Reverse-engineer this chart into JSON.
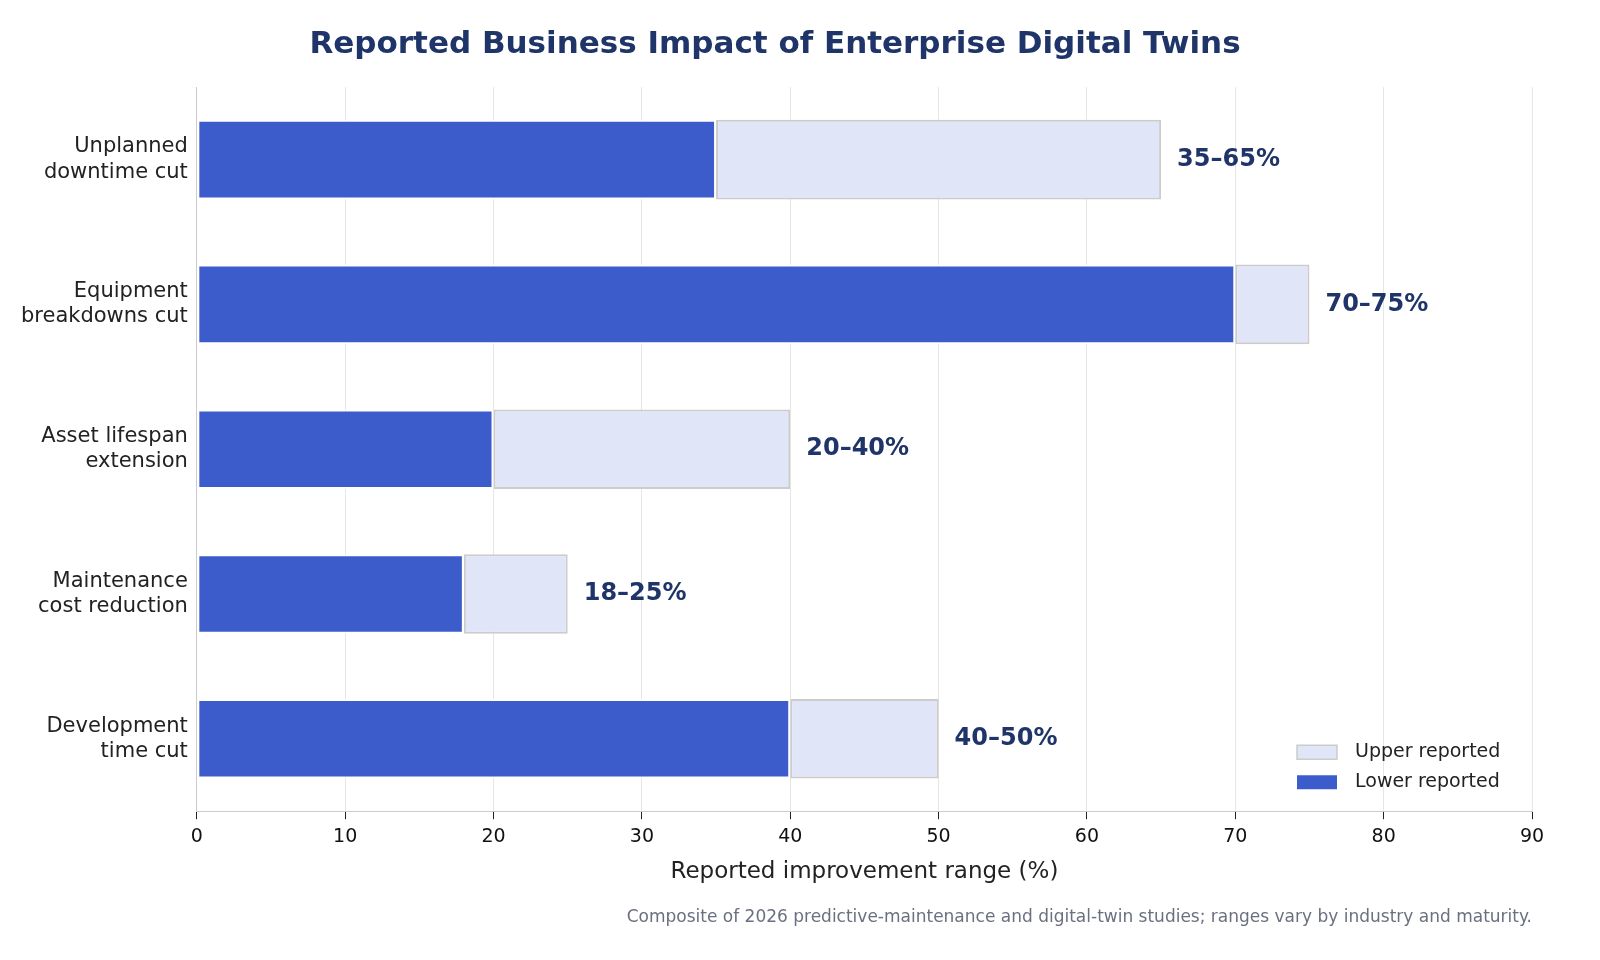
{
  "chart_data": {
    "type": "bar",
    "orientation": "horizontal",
    "stacked": true,
    "title": "Reported Business Impact of Enterprise Digital Twins",
    "xlabel": "Reported improvement range (%)",
    "categories": [
      "Unplanned\ndowntime cut",
      "Equipment\nbreakdowns cut",
      "Asset lifespan\nextension",
      "Maintenance\ncost reduction",
      "Development\ntime cut"
    ],
    "series": [
      {
        "name": "Lower reported",
        "color": "#3d5ccb",
        "values": [
          35,
          70,
          20,
          18,
          40
        ]
      },
      {
        "name": "Upper reported",
        "color": "#e0e6f8",
        "values": [
          30,
          5,
          20,
          7,
          10
        ]
      }
    ],
    "value_labels": [
      "35–65%",
      "70–75%",
      "20–40%",
      "18–25%",
      "40–50%"
    ],
    "xlim": [
      0,
      90
    ],
    "xticks": [
      0,
      10,
      20,
      30,
      40,
      50,
      60,
      70,
      80,
      90
    ],
    "grid": "x",
    "legend": "bottom right",
    "annotations": [
      "Composite of 2026 predictive-maintenance and digital-twin studies; ranges vary by industry and maturity."
    ]
  }
}
